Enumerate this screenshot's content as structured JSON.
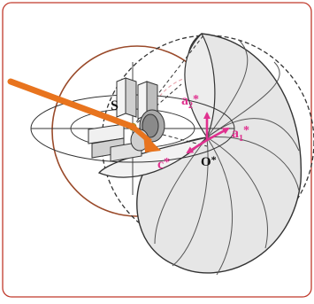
{
  "labels": {
    "source": "S",
    "a2_base": "a",
    "a2_sub": "2",
    "a2_star": "*",
    "a1_base": "a",
    "a1_sub": "1",
    "a1_star": "*",
    "c_base": "c",
    "c_star": "*",
    "origin_base": "O",
    "origin_star": "*"
  },
  "colors": {
    "frame_border": "#c0392b",
    "beam": "#e8741e",
    "beam_dark": "#b85010",
    "brown_circle": "#9a4a2a",
    "reciprocal_vector": "#e0318f",
    "sphere_fill": "#e6e6e6",
    "sphere_stroke": "#333333",
    "dashed_circle": "#333333",
    "pink_dashed": "#e9a7b0",
    "petal_fill": "#d9d9d9"
  }
}
